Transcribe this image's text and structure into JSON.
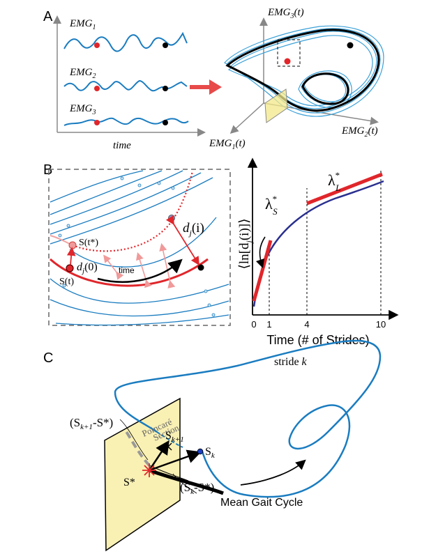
{
  "panels": {
    "a": {
      "label": "A",
      "emg1": "EMG",
      "emg1_sub": "1",
      "emg2": "EMG",
      "emg2_sub": "2",
      "emg3": "EMG",
      "emg3_sub": "3",
      "time": "time",
      "axis3_main": "EMG",
      "axis3_sub": "3",
      "axis3_tail": "(t)",
      "axis2_main": "EMG",
      "axis2_sub": "2",
      "axis2_tail": "(t)",
      "axis1_main": "EMG",
      "axis1_sub": "1",
      "axis1_tail": "(t)"
    },
    "b": {
      "label": "B",
      "s_tstar": "S(t*)",
      "s_t": "S(t)",
      "dj0": "d",
      "dj0_sub": "j",
      "dj0_tail": "(0)",
      "dji": "d",
      "dji_sub": "j",
      "dji_tail": "(i)",
      "time": "time",
      "ylabel": "⟨ln[d",
      "ylabel_sub": "j",
      "ylabel_tail": "(i)]⟩",
      "lambda_s": "λ",
      "lambda_s_sup": "*",
      "lambda_s_sub": "S",
      "lambda_l": "λ",
      "lambda_l_sup": "*",
      "lambda_l_sub": "L",
      "ticks": [
        "0",
        "1",
        "4",
        "10"
      ],
      "xlabel": "Time (# of Strides)"
    },
    "c": {
      "label": "C",
      "stride": "stride ",
      "stride_k": "k",
      "poincare1": "Poincaré",
      "poincare2": "Section",
      "sk1_pre": "(S",
      "sk1_sub": "k+1",
      "sk1_post": "-S*)",
      "pt_sk1": "S",
      "pt_sk1_sub": "k+1",
      "pt_sk": "S",
      "pt_sk_sub": "k",
      "sk_pre": "(S",
      "sk_sub": "k",
      "sk_post": "-S*)",
      "sstar": "S*",
      "mean": "Mean Gait Cycle"
    }
  },
  "colors": {
    "blue": "#1a7cc0",
    "red": "#e0262b",
    "pink": "#f09a9a",
    "navy": "#2a2f8f",
    "yellow": "#f9f0b4",
    "gray": "#888888"
  }
}
